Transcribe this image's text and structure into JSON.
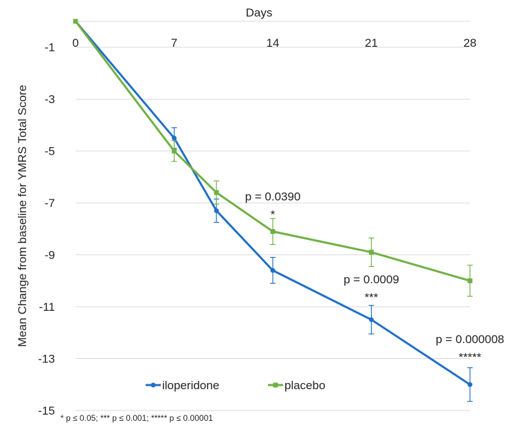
{
  "chart_data": {
    "type": "line",
    "title": "",
    "xlabel": "Days",
    "ylabel": "Mean Change from baseline for YMRS Total Score",
    "x": [
      0,
      7,
      10,
      14,
      21,
      28
    ],
    "x_ticks": [
      "0",
      "7",
      "14",
      "21",
      "28"
    ],
    "x_tick_values": [
      0,
      7,
      14,
      21,
      28
    ],
    "y_ticks": [
      "-1",
      "-3",
      "-5",
      "-7",
      "-9",
      "-11",
      "-13",
      "-15"
    ],
    "y_tick_values": [
      -1,
      -3,
      -5,
      -7,
      -9,
      -11,
      -13,
      -15
    ],
    "ylim": [
      -15,
      0
    ],
    "xlim": [
      0,
      28
    ],
    "grid": "horizontal",
    "legend_position": "bottom-center",
    "series": [
      {
        "name": "iloperidone",
        "color": "#1f6fc5",
        "marker": "circle",
        "values": [
          0,
          -4.5,
          -7.3,
          -9.6,
          -11.5,
          -14.0
        ],
        "errors": [
          0,
          0.4,
          0.45,
          0.5,
          0.55,
          0.65
        ]
      },
      {
        "name": "placebo",
        "color": "#6fb043",
        "marker": "square",
        "values": [
          0,
          -5.0,
          -6.6,
          -8.1,
          -8.9,
          -10.0
        ],
        "errors": [
          0,
          0.4,
          0.45,
          0.5,
          0.55,
          0.6
        ]
      }
    ],
    "annotations": [
      {
        "text": "p = 0.0390",
        "stars": "*",
        "x": 14,
        "y": -6.9
      },
      {
        "text": "p = 0.0009",
        "stars": "***",
        "x": 21,
        "y": -10.1
      },
      {
        "text": "p = 0.000008",
        "stars": "*****",
        "x": 28,
        "y": -12.4
      }
    ],
    "footnote": "* p ≤ 0.05; *** p ≤ 0.001; ***** p ≤ 0.00001"
  }
}
